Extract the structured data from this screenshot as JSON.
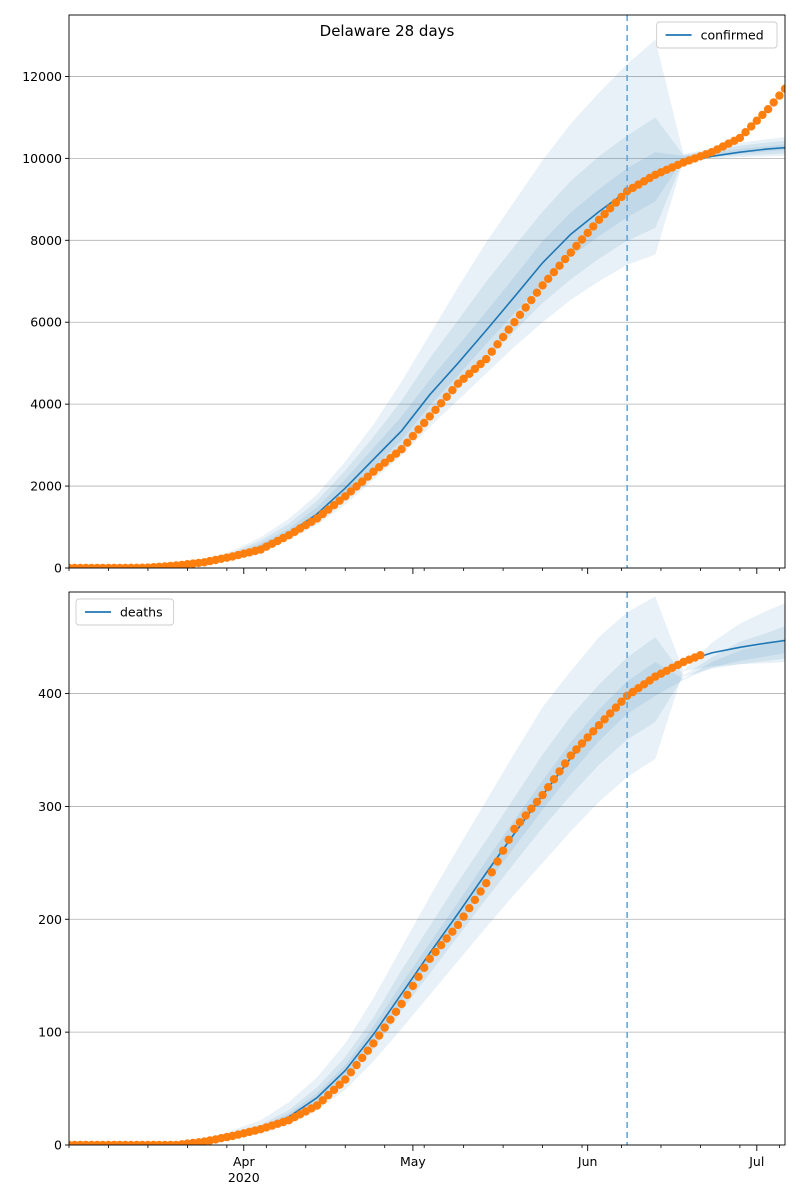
{
  "colors": {
    "model": "#1f77b4",
    "observed": "#ff7f0e",
    "band": "#1f77b4",
    "vline": "#6aa7d6",
    "grid": "#b0b0b0",
    "axis": "#000000"
  },
  "chart_data": [
    {
      "type": "line",
      "title": "Delaware 28 days",
      "xlabel": "",
      "ylabel": "",
      "ylim": [
        0,
        13500
      ],
      "yticks": [
        0,
        2000,
        4000,
        6000,
        8000,
        10000,
        12000
      ],
      "grid": "horizontal",
      "legend": "top-right",
      "x_range": [
        "2020-03-01",
        "2020-07-06"
      ],
      "x_major_ticks": [
        {
          "date": "2020-04-01",
          "label": "Apr"
        },
        {
          "date": "2020-05-01",
          "label": "May"
        },
        {
          "date": "2020-06-01",
          "label": "Jun"
        },
        {
          "date": "2020-07-01",
          "label": "Jul"
        }
      ],
      "year_label": "2020",
      "forecast_start": "2020-06-08",
      "series": [
        {
          "name": "confirmed",
          "kind": "model_median",
          "points": [
            [
              "2020-03-01",
              0
            ],
            [
              "2020-03-15",
              20
            ],
            [
              "2020-03-20",
              60
            ],
            [
              "2020-03-25",
              150
            ],
            [
              "2020-03-30",
              290
            ],
            [
              "2020-04-04",
              520
            ],
            [
              "2020-04-09",
              850
            ],
            [
              "2020-04-14",
              1320
            ],
            [
              "2020-04-19",
              1950
            ],
            [
              "2020-04-24",
              2650
            ],
            [
              "2020-04-29",
              3350
            ],
            [
              "2020-05-04",
              4230
            ],
            [
              "2020-05-09",
              5000
            ],
            [
              "2020-05-14",
              5800
            ],
            [
              "2020-05-19",
              6620
            ],
            [
              "2020-05-24",
              7450
            ],
            [
              "2020-05-29",
              8150
            ],
            [
              "2020-06-03",
              8700
            ],
            [
              "2020-06-08",
              9200
            ],
            [
              "2020-06-13",
              9600
            ],
            [
              "2020-06-18",
              9900
            ],
            [
              "2020-06-23",
              10050
            ],
            [
              "2020-06-28",
              10150
            ],
            [
              "2020-07-03",
              10230
            ],
            [
              "2020-07-06",
              10260
            ]
          ],
          "bands": [
            {
              "lo": [
                0,
                15,
                50,
                120,
                240,
                420,
                690,
                1050,
                1550,
                2150,
                2750,
                3450,
                4100,
                4750,
                5400,
                6000,
                6550,
                7000,
                7400,
                7650,
                9950,
                10000,
                10030,
                10050,
                10060
              ],
              "hi": [
                0,
                30,
                80,
                200,
                420,
                750,
                1200,
                1800,
                2600,
                3500,
                4550,
                5700,
                6850,
                7950,
                8950,
                9950,
                10850,
                11600,
                12300,
                12900,
                10100,
                10250,
                10380,
                10470,
                10520
              ]
            },
            {
              "lo": [
                0,
                17,
                53,
                128,
                255,
                450,
                730,
                1120,
                1660,
                2280,
                2920,
                3690,
                4380,
                5080,
                5780,
                6470,
                7050,
                7550,
                7990,
                8300,
                9980,
                10030,
                10070,
                10100,
                10120
              ],
              "hi": [
                0,
                26,
                72,
                182,
                375,
                670,
                1080,
                1640,
                2380,
                3200,
                4090,
                5120,
                6050,
                6990,
                7850,
                8700,
                9450,
                10050,
                10550,
                11000,
                10080,
                10200,
                10310,
                10390,
                10430
              ]
            },
            {
              "lo": [
                0,
                18,
                56,
                136,
                270,
                480,
                780,
                1210,
                1790,
                2450,
                3120,
                3960,
                4700,
                5470,
                6220,
                6970,
                7600,
                8100,
                8560,
                8950,
                9990,
                10060,
                10120,
                10170,
                10200
              ],
              "hi": [
                0,
                23,
                66,
                168,
                330,
                600,
                960,
                1490,
                2170,
                2930,
                3700,
                4600,
                5420,
                6260,
                7110,
                7980,
                8680,
                9250,
                9760,
                10150,
                10060,
                10140,
                10230,
                10300,
                10340
              ]
            }
          ]
        },
        {
          "name": "",
          "kind": "observed",
          "points": [
            [
              "2020-03-01",
              0
            ],
            [
              "2020-03-10",
              0
            ],
            [
              "2020-03-15",
              10
            ],
            [
              "2020-03-20",
              60
            ],
            [
              "2020-03-25",
              140
            ],
            [
              "2020-03-30",
              280
            ],
            [
              "2020-04-04",
              450
            ],
            [
              "2020-04-09",
              800
            ],
            [
              "2020-04-14",
              1210
            ],
            [
              "2020-04-19",
              1750
            ],
            [
              "2020-04-24",
              2350
            ],
            [
              "2020-04-29",
              2900
            ],
            [
              "2020-05-04",
              3700
            ],
            [
              "2020-05-09",
              4500
            ],
            [
              "2020-05-14",
              5100
            ],
            [
              "2020-05-19",
              6000
            ],
            [
              "2020-05-24",
              6900
            ],
            [
              "2020-05-29",
              7700
            ],
            [
              "2020-06-03",
              8500
            ],
            [
              "2020-06-08",
              9200
            ],
            [
              "2020-06-13",
              9600
            ],
            [
              "2020-06-18",
              9900
            ],
            [
              "2020-06-23",
              10150
            ],
            [
              "2020-06-28",
              10500
            ],
            [
              "2020-07-03",
              11200
            ],
            [
              "2020-07-06",
              11700
            ]
          ]
        }
      ]
    },
    {
      "type": "line",
      "title": "",
      "xlabel": "",
      "ylabel": "",
      "ylim": [
        0,
        490
      ],
      "yticks": [
        0,
        100,
        200,
        300,
        400
      ],
      "grid": "horizontal",
      "legend": "top-left",
      "x_range": [
        "2020-03-01",
        "2020-07-06"
      ],
      "x_major_ticks": [
        {
          "date": "2020-04-01",
          "label": "Apr"
        },
        {
          "date": "2020-05-01",
          "label": "May"
        },
        {
          "date": "2020-06-01",
          "label": "Jun"
        },
        {
          "date": "2020-07-01",
          "label": "Jul"
        }
      ],
      "year_label": "2020",
      "forecast_start": "2020-06-08",
      "series": [
        {
          "name": "deaths",
          "kind": "model_median",
          "points": [
            [
              "2020-03-01",
              0
            ],
            [
              "2020-03-15",
              0
            ],
            [
              "2020-03-20",
              1
            ],
            [
              "2020-03-25",
              3
            ],
            [
              "2020-03-30",
              8
            ],
            [
              "2020-04-04",
              14
            ],
            [
              "2020-04-09",
              25
            ],
            [
              "2020-04-14",
              42
            ],
            [
              "2020-04-19",
              66
            ],
            [
              "2020-04-24",
              98
            ],
            [
              "2020-04-29",
              134
            ],
            [
              "2020-05-04",
              170
            ],
            [
              "2020-05-09",
              205
            ],
            [
              "2020-05-14",
              241
            ],
            [
              "2020-05-19",
              276
            ],
            [
              "2020-05-24",
              310
            ],
            [
              "2020-05-29",
              343
            ],
            [
              "2020-06-03",
              372
            ],
            [
              "2020-06-08",
              398
            ],
            [
              "2020-06-13",
              416
            ],
            [
              "2020-06-18",
              428
            ],
            [
              "2020-06-23",
              436
            ],
            [
              "2020-06-28",
              441
            ],
            [
              "2020-07-03",
              445
            ],
            [
              "2020-07-06",
              447
            ]
          ],
          "bands": [
            {
              "lo": [
                0,
                0,
                0,
                2,
                5,
                10,
                18,
                31,
                49,
                74,
                103,
                133,
                163,
                193,
                222,
                250,
                278,
                304,
                326,
                342,
                420,
                424,
                426,
                427,
                428
              ],
              "hi": [
                0,
                1,
                2,
                5,
                13,
                22,
                38,
                60,
                90,
                130,
                175,
                220,
                263,
                305,
                347,
                388,
                420,
                450,
                472,
                486,
                420,
                445,
                462,
                474,
                480
              ]
            },
            {
              "lo": [
                0,
                0,
                1,
                2,
                6,
                12,
                21,
                36,
                57,
                85,
                119,
                152,
                185,
                218,
                250,
                281,
                310,
                337,
                359,
                375,
                415,
                422,
                426,
                429,
                431
              ],
              "hi": [
                0,
                0,
                1,
                4,
                11,
                18,
                31,
                51,
                78,
                113,
                155,
                194,
                233,
                270,
                308,
                346,
                380,
                408,
                432,
                450,
                416,
                432,
                446,
                454,
                460
              ]
            },
            {
              "lo": [
                0,
                0,
                1,
                3,
                7,
                13,
                23,
                39,
                62,
                92,
                127,
                162,
                196,
                230,
                264,
                297,
                329,
                358,
                382,
                398,
                412,
                423,
                429,
                433,
                436
              ],
              "hi": [
                0,
                0,
                1,
                3,
                9,
                16,
                28,
                46,
                71,
                105,
                143,
                179,
                215,
                252,
                288,
                323,
                357,
                386,
                411,
                428,
                413,
                428,
                438,
                444,
                449
              ]
            }
          ]
        },
        {
          "name": "",
          "kind": "observed",
          "points": [
            [
              "2020-03-01",
              0
            ],
            [
              "2020-03-20",
              0
            ],
            [
              "2020-03-25",
              3
            ],
            [
              "2020-03-30",
              8
            ],
            [
              "2020-04-04",
              14
            ],
            [
              "2020-04-09",
              22
            ],
            [
              "2020-04-14",
              35
            ],
            [
              "2020-04-19",
              58
            ],
            [
              "2020-04-24",
              90
            ],
            [
              "2020-04-29",
              125
            ],
            [
              "2020-05-04",
              165
            ],
            [
              "2020-05-09",
              195
            ],
            [
              "2020-05-14",
              232
            ],
            [
              "2020-05-19",
              280
            ],
            [
              "2020-05-24",
              310
            ],
            [
              "2020-05-29",
              345
            ],
            [
              "2020-06-03",
              372
            ],
            [
              "2020-06-08",
              398
            ],
            [
              "2020-06-13",
              415
            ],
            [
              "2020-06-18",
              428
            ],
            [
              "2020-06-21",
              434
            ]
          ]
        }
      ]
    }
  ]
}
